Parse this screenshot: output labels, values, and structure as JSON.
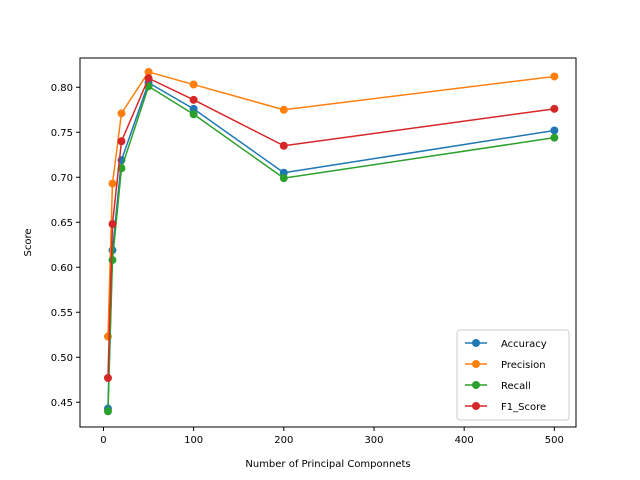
{
  "chart_data": {
    "type": "line",
    "title": "",
    "xlabel": "Number of Principal Componnets",
    "ylabel": "Score",
    "xlim": [
      -26,
      524
    ],
    "ylim": [
      0.4225,
      0.8325
    ],
    "xticks": [
      0,
      100,
      200,
      300,
      400,
      500
    ],
    "yticks": [
      0.45,
      0.5,
      0.55,
      0.6,
      0.65,
      0.7,
      0.75,
      0.8
    ],
    "x": [
      5,
      10,
      20,
      50,
      100,
      200,
      500
    ],
    "grid": false,
    "legend_position": "lower-right",
    "series": [
      {
        "name": "Accuracy",
        "color": "#1f77b4",
        "values": [
          0.443,
          0.619,
          0.719,
          0.805,
          0.776,
          0.705,
          0.752
        ]
      },
      {
        "name": "Precision",
        "color": "#ff7f0e",
        "values": [
          0.523,
          0.693,
          0.771,
          0.817,
          0.803,
          0.775,
          0.812
        ]
      },
      {
        "name": "Recall",
        "color": "#2ca02c",
        "values": [
          0.44,
          0.608,
          0.71,
          0.801,
          0.77,
          0.699,
          0.744
        ]
      },
      {
        "name": "F1_Score",
        "color": "#d62728",
        "values": [
          0.477,
          0.648,
          0.74,
          0.81,
          0.786,
          0.735,
          0.776
        ]
      }
    ]
  }
}
